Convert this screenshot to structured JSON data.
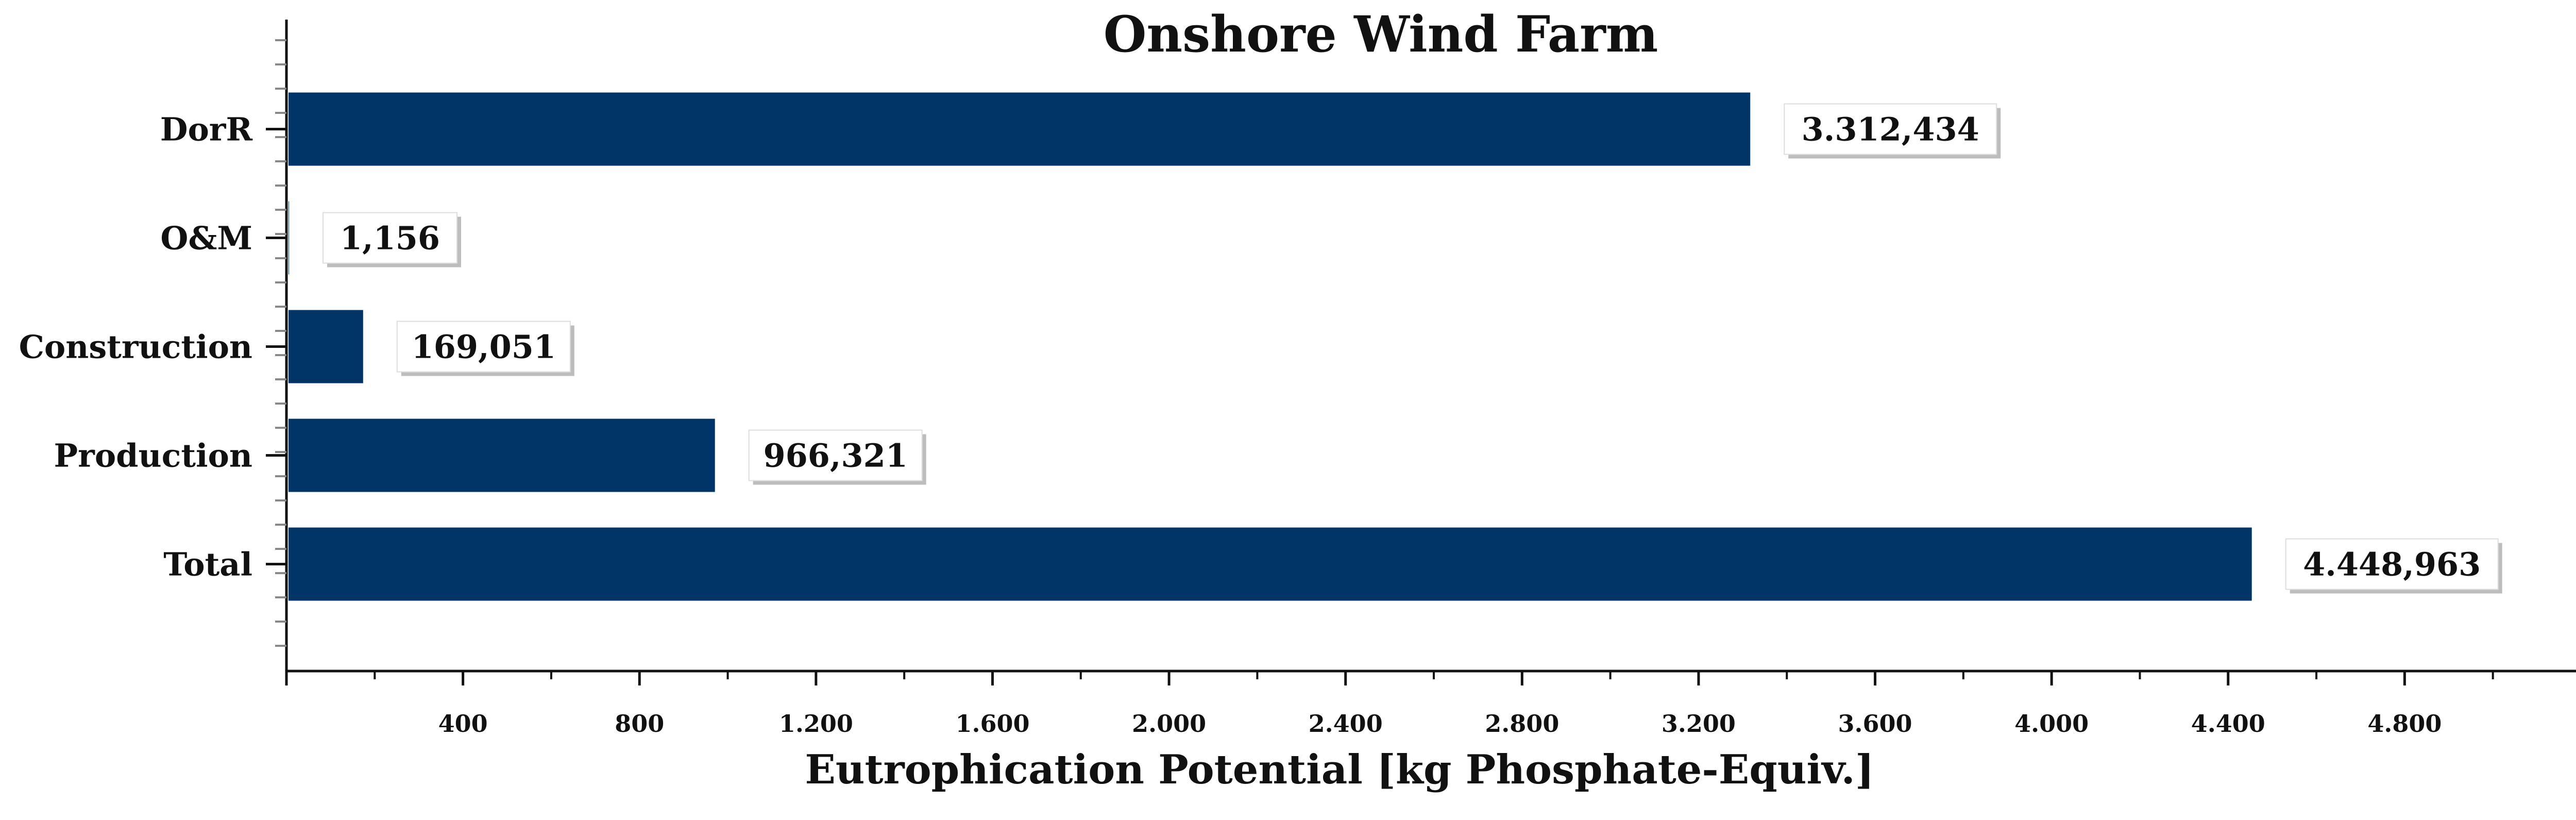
{
  "chart_data": {
    "type": "bar",
    "orientation": "horizontal",
    "title": "Onshore Wind Farm",
    "xlabel": "Eutrophication Potential [kg Phosphate-Equiv.]",
    "ylabel": "",
    "categories": [
      "DorR",
      "O&M",
      "Construction",
      "Production",
      "Total"
    ],
    "values": [
      3312.434,
      1.156,
      169.051,
      966.321,
      4448.963
    ],
    "value_labels": [
      "3.312,434",
      "1,156",
      "169,051",
      "966,321",
      "4.448,963"
    ],
    "xlim": [
      0,
      5200
    ],
    "xticks": [
      "400",
      "800",
      "1.200",
      "1.600",
      "2.000",
      "2.400",
      "2.800",
      "3.200",
      "3.600",
      "4.000",
      "4.400",
      "4.800"
    ],
    "xtick_values": [
      400,
      800,
      1200,
      1600,
      2000,
      2400,
      2800,
      3200,
      3600,
      4000,
      4400,
      4800
    ],
    "grid": false,
    "legend": "none",
    "bar_color": "#003366"
  }
}
